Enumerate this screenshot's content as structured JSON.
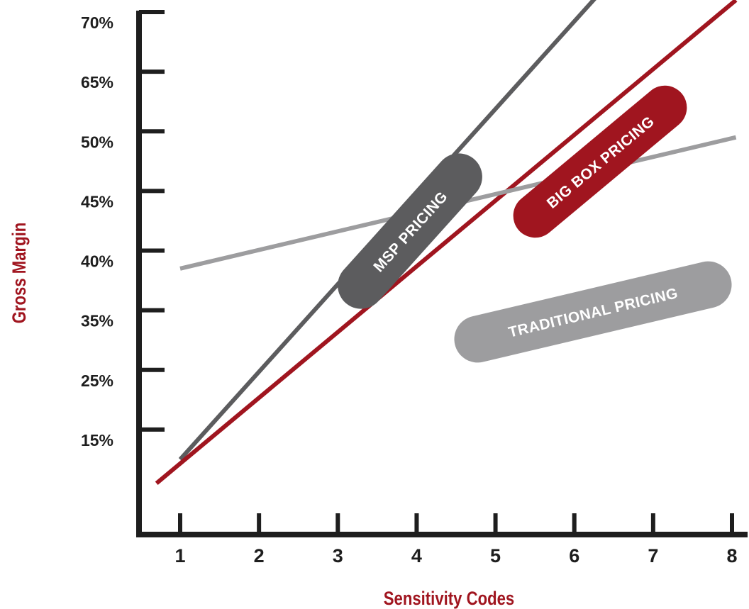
{
  "chart_data": {
    "type": "line",
    "xlabel": "Sensitivity Codes",
    "ylabel": "Gross Margin",
    "x_ticks": [
      "1",
      "2",
      "3",
      "4",
      "5",
      "6",
      "7",
      "8"
    ],
    "y_ticks": [
      "70%",
      "65%",
      "50%",
      "45%",
      "40%",
      "35%",
      "25%",
      "15%"
    ],
    "grid": false,
    "legend": "none",
    "series": [
      {
        "name": "MSP PRICING",
        "color": "#5c5c5e",
        "x": [
          1,
          7.4
        ],
        "y": [
          -0.5,
          8.9
        ]
      },
      {
        "name": "BIG BOX PRICING",
        "color": "#a0151f",
        "x": [
          0.7,
          8.05
        ],
        "y": [
          -0.9,
          7.2
        ]
      },
      {
        "name": "TRADITIONAL PRICING",
        "color": "#9d9d9f",
        "x": [
          1,
          8.05
        ],
        "y": [
          2.7,
          4.9
        ]
      }
    ]
  }
}
